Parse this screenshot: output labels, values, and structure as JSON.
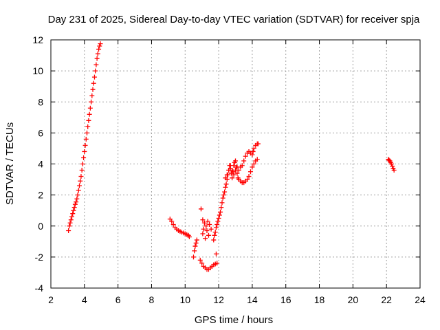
{
  "chart_data": {
    "type": "scatter",
    "title": "Day 231 of 2025, Sidereal Day-to-day VTEC variation (SDTVAR) for receiver spja",
    "xlabel": "GPS time / hours",
    "ylabel": "SDTVAR / TECUs",
    "xlim": [
      2,
      24
    ],
    "ylim": [
      -4,
      12
    ],
    "xticks": [
      2,
      4,
      6,
      8,
      10,
      12,
      14,
      16,
      18,
      20,
      22,
      24
    ],
    "yticks": [
      -4,
      -2,
      0,
      2,
      4,
      6,
      8,
      10,
      12
    ],
    "grid": true,
    "marker": "+",
    "color": "#ff0000",
    "series": [
      {
        "name": "segment-1",
        "points": [
          [
            3.05,
            -0.3
          ],
          [
            3.1,
            0.0
          ],
          [
            3.15,
            0.2
          ],
          [
            3.2,
            0.4
          ],
          [
            3.25,
            0.6
          ],
          [
            3.3,
            0.8
          ],
          [
            3.35,
            1.0
          ],
          [
            3.4,
            1.2
          ],
          [
            3.45,
            1.4
          ],
          [
            3.5,
            1.55
          ],
          [
            3.55,
            1.75
          ],
          [
            3.6,
            2.0
          ],
          [
            3.65,
            2.3
          ],
          [
            3.7,
            2.6
          ],
          [
            3.75,
            2.9
          ],
          [
            3.8,
            3.2
          ],
          [
            3.85,
            3.6
          ],
          [
            3.9,
            4.0
          ],
          [
            3.95,
            4.4
          ],
          [
            4.0,
            4.8
          ],
          [
            4.05,
            5.2
          ],
          [
            4.1,
            5.6
          ],
          [
            4.15,
            6.0
          ],
          [
            4.2,
            6.4
          ],
          [
            4.25,
            6.8
          ],
          [
            4.3,
            7.2
          ],
          [
            4.35,
            7.6
          ],
          [
            4.4,
            8.0
          ],
          [
            4.45,
            8.4
          ],
          [
            4.5,
            8.8
          ],
          [
            4.55,
            9.2
          ],
          [
            4.6,
            9.6
          ],
          [
            4.65,
            10.0
          ],
          [
            4.7,
            10.4
          ],
          [
            4.75,
            10.8
          ],
          [
            4.8,
            11.1
          ],
          [
            4.85,
            11.4
          ],
          [
            4.9,
            11.6
          ],
          [
            4.95,
            11.75
          ]
        ]
      },
      {
        "name": "segment-2",
        "points": [
          [
            9.1,
            0.45
          ],
          [
            9.2,
            0.3
          ],
          [
            9.3,
            0.1
          ],
          [
            9.4,
            -0.1
          ],
          [
            9.5,
            -0.2
          ],
          [
            9.6,
            -0.3
          ],
          [
            9.7,
            -0.35
          ],
          [
            9.8,
            -0.4
          ],
          [
            9.9,
            -0.45
          ],
          [
            10.0,
            -0.5
          ],
          [
            10.1,
            -0.55
          ],
          [
            10.2,
            -0.6
          ],
          [
            10.25,
            -0.7
          ]
        ]
      },
      {
        "name": "segment-3",
        "points": [
          [
            10.5,
            -2.0
          ],
          [
            10.55,
            -1.6
          ],
          [
            10.6,
            -1.3
          ],
          [
            10.65,
            -1.1
          ],
          [
            10.7,
            -0.9
          ],
          [
            10.9,
            -2.2
          ],
          [
            10.95,
            1.1
          ],
          [
            11.0,
            -2.4
          ],
          [
            11.05,
            -0.5
          ],
          [
            11.05,
            0.4
          ],
          [
            11.1,
            -2.6
          ],
          [
            11.1,
            -0.2
          ],
          [
            11.15,
            0.2
          ],
          [
            11.2,
            -2.7
          ],
          [
            11.2,
            -0.8
          ],
          [
            11.25,
            0.0
          ],
          [
            11.3,
            -2.8
          ],
          [
            11.3,
            -0.3
          ],
          [
            11.35,
            0.3
          ],
          [
            11.4,
            -2.8
          ],
          [
            11.4,
            -0.6
          ],
          [
            11.45,
            0.1
          ],
          [
            11.5,
            -2.7
          ],
          [
            11.55,
            -0.2
          ],
          [
            11.6,
            -2.6
          ],
          [
            11.7,
            -2.5
          ],
          [
            11.8,
            -2.45
          ],
          [
            11.85,
            -1.8
          ],
          [
            11.9,
            -2.4
          ]
        ]
      },
      {
        "name": "segment-4",
        "points": [
          [
            11.7,
            -0.9
          ],
          [
            11.75,
            -0.6
          ],
          [
            11.8,
            -0.4
          ],
          [
            11.85,
            -0.1
          ],
          [
            11.9,
            0.1
          ],
          [
            11.95,
            0.3
          ],
          [
            12.0,
            0.5
          ],
          [
            12.05,
            0.7
          ],
          [
            12.1,
            0.9
          ],
          [
            12.15,
            1.2
          ],
          [
            12.2,
            1.5
          ],
          [
            12.25,
            1.8
          ],
          [
            12.3,
            2.0
          ],
          [
            12.35,
            2.2
          ],
          [
            12.4,
            2.5
          ],
          [
            12.45,
            2.7
          ],
          [
            12.5,
            3.0
          ],
          [
            12.55,
            3.3
          ],
          [
            12.6,
            3.6
          ],
          [
            12.65,
            3.9
          ],
          [
            12.7,
            3.7
          ],
          [
            12.75,
            3.4
          ],
          [
            12.8,
            3.1
          ],
          [
            12.85,
            3.5
          ],
          [
            12.9,
            3.9
          ],
          [
            12.95,
            4.1
          ],
          [
            13.0,
            4.2
          ],
          [
            13.05,
            3.8
          ],
          [
            13.1,
            3.4
          ],
          [
            13.15,
            3.1
          ],
          [
            13.2,
            3.0
          ],
          [
            13.3,
            2.9
          ],
          [
            13.4,
            2.8
          ],
          [
            13.5,
            2.8
          ],
          [
            13.6,
            2.9
          ],
          [
            13.7,
            3.0
          ],
          [
            13.8,
            3.2
          ],
          [
            13.9,
            3.5
          ],
          [
            14.0,
            3.8
          ],
          [
            14.1,
            4.0
          ],
          [
            14.2,
            4.2
          ],
          [
            14.3,
            4.3
          ]
        ]
      },
      {
        "name": "segment-5",
        "points": [
          [
            12.4,
            3.1
          ],
          [
            12.5,
            3.3
          ],
          [
            12.6,
            3.6
          ],
          [
            12.7,
            3.9
          ],
          [
            12.8,
            3.6
          ],
          [
            12.9,
            3.3
          ],
          [
            13.0,
            3.6
          ],
          [
            13.1,
            3.8
          ],
          [
            13.2,
            3.6
          ],
          [
            13.3,
            3.8
          ],
          [
            13.4,
            3.9
          ],
          [
            13.5,
            4.2
          ],
          [
            13.6,
            4.5
          ],
          [
            13.7,
            4.7
          ],
          [
            13.8,
            4.8
          ],
          [
            13.9,
            4.7
          ],
          [
            14.0,
            4.6
          ],
          [
            14.05,
            4.8
          ],
          [
            14.1,
            5.0
          ],
          [
            14.2,
            5.2
          ],
          [
            14.3,
            5.3
          ],
          [
            14.35,
            5.3
          ]
        ]
      },
      {
        "name": "segment-6",
        "points": [
          [
            22.1,
            4.3
          ],
          [
            22.15,
            4.25
          ],
          [
            22.2,
            4.2
          ],
          [
            22.25,
            4.1
          ],
          [
            22.3,
            4.0
          ],
          [
            22.35,
            3.85
          ],
          [
            22.4,
            3.7
          ],
          [
            22.45,
            3.6
          ]
        ]
      }
    ]
  }
}
